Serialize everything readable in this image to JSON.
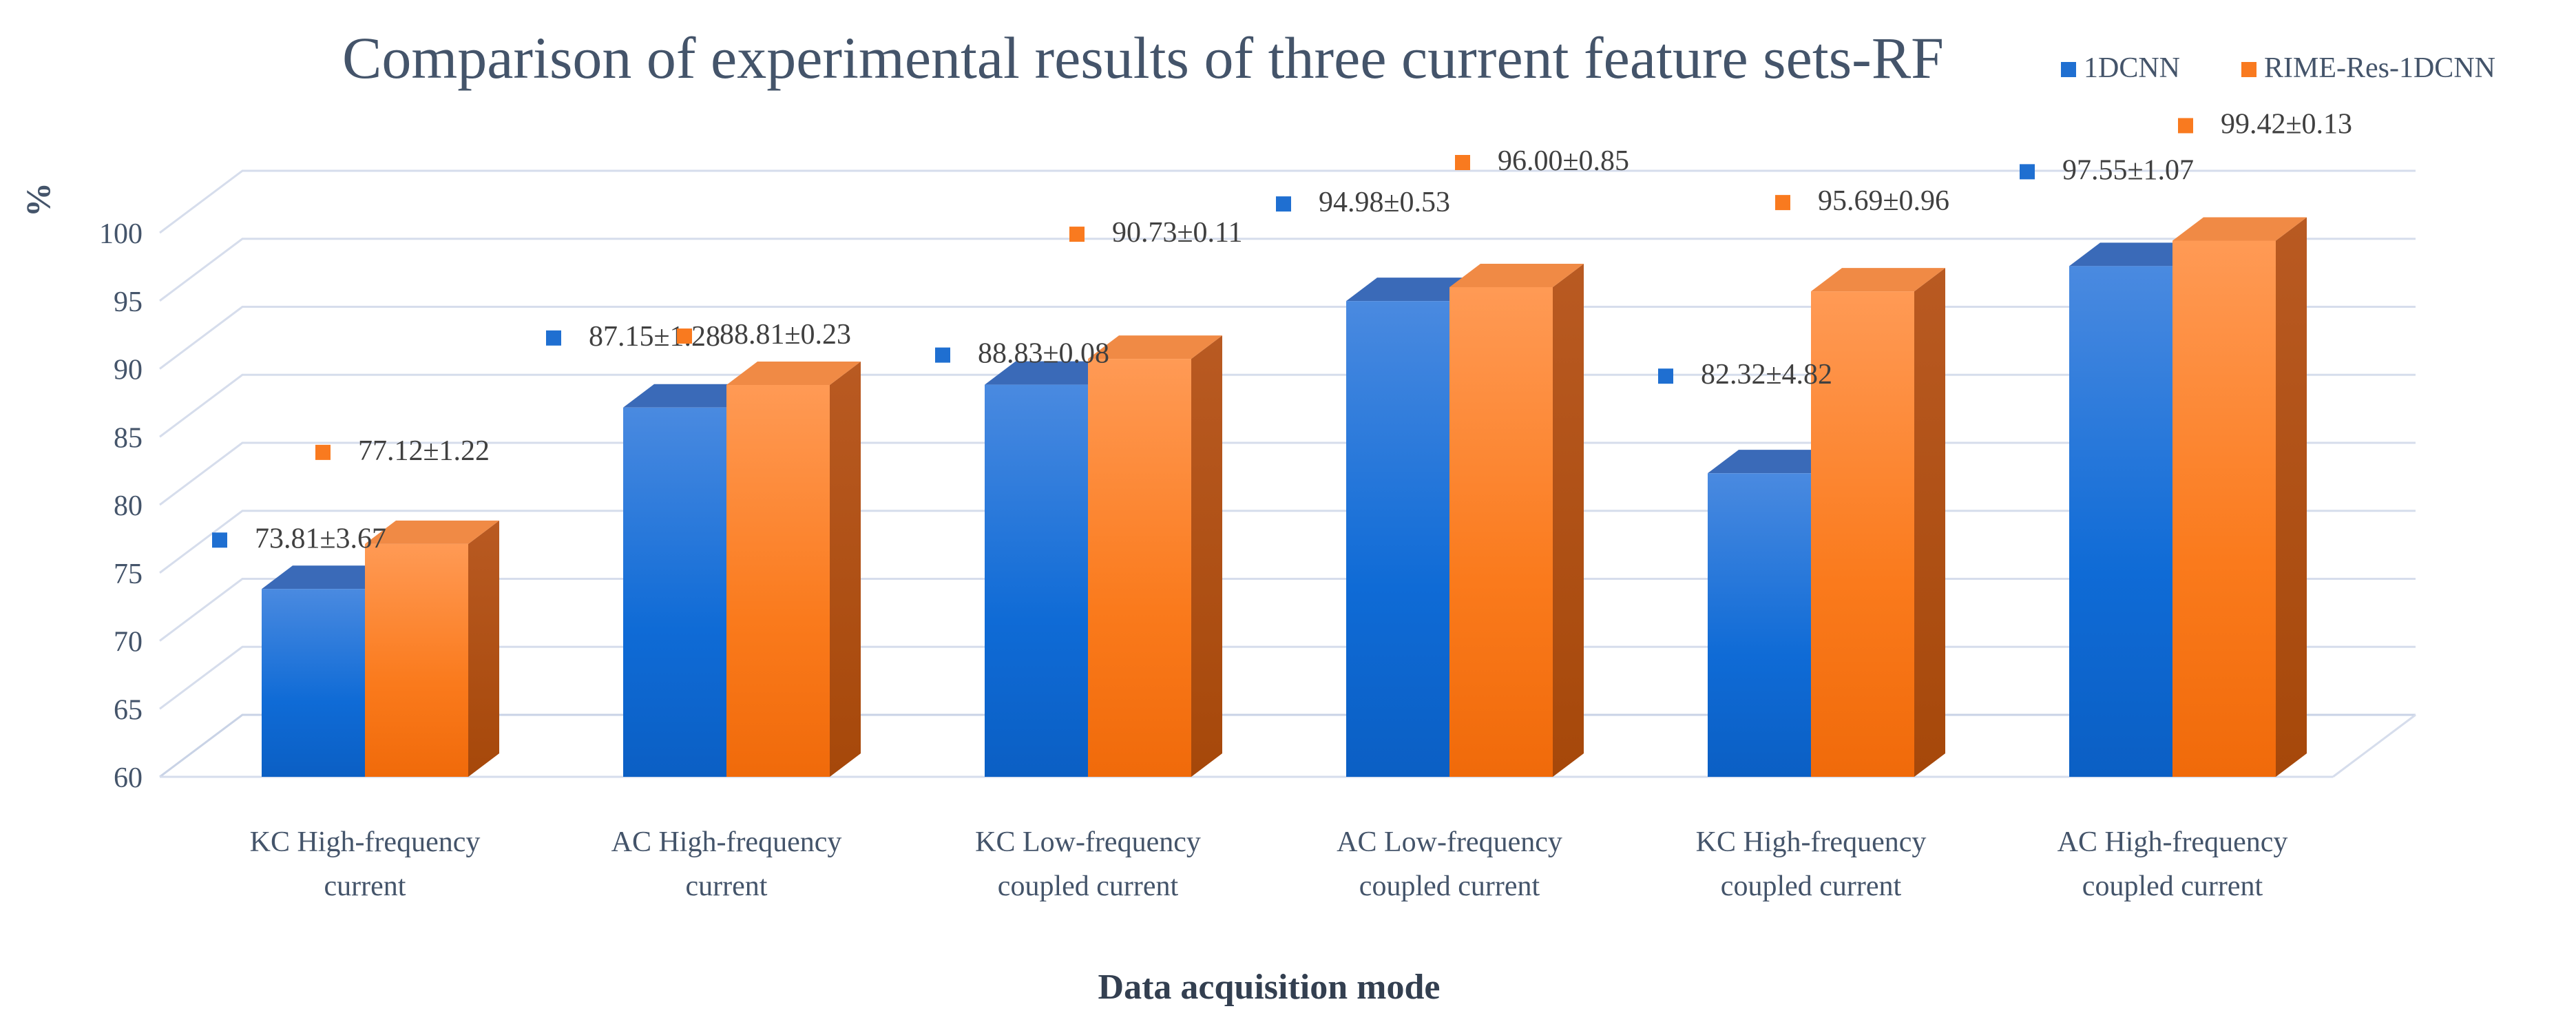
{
  "chart_data": {
    "type": "bar",
    "title": "Comparison of experimental results of three current feature sets-RF",
    "xlabel": "Data acquisition mode",
    "ylabel": "%",
    "ylim": [
      60,
      100
    ],
    "yticks": [
      60,
      65,
      70,
      75,
      80,
      85,
      90,
      95,
      100
    ],
    "grid": true,
    "legend_position": "top-right",
    "categories": [
      [
        "KC High-frequency",
        "current"
      ],
      [
        "AC High-frequency",
        "current"
      ],
      [
        "KC Low-frequency",
        "coupled current"
      ],
      [
        "AC Low-frequency",
        "coupled current"
      ],
      [
        "KC High-frequency",
        "coupled current"
      ],
      [
        "AC High-frequency",
        "coupled current"
      ]
    ],
    "series": [
      {
        "name": "1DCNN",
        "color": "#1F6FD1",
        "values": [
          73.81,
          87.15,
          88.83,
          94.98,
          82.32,
          97.55
        ],
        "labels": [
          "73.81±3.67",
          "87.15±1.28",
          "88.83±0.08",
          "94.98±0.53",
          "82.32±4.82",
          "97.55±1.07"
        ]
      },
      {
        "name": "RIME-Res-1DCNN",
        "color": "#F97A1F",
        "values": [
          77.12,
          88.81,
          90.73,
          96.0,
          95.69,
          99.42
        ],
        "labels": [
          "77.12±1.22",
          "88.81±0.23",
          "90.73±0.11",
          "96.00±0.85",
          "95.69±0.96",
          "99.42±0.13"
        ]
      }
    ]
  }
}
